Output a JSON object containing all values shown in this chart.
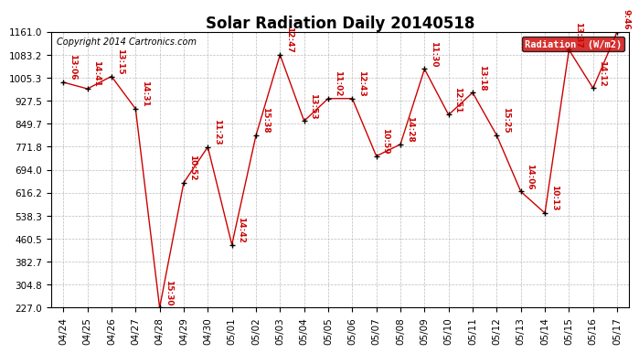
{
  "title": "Solar Radiation Daily 20140518",
  "copyright": "Copyright 2014 Cartronics.com",
  "legend_label": "Radiation  (W/m2)",
  "dates": [
    "04/24",
    "04/25",
    "04/26",
    "04/27",
    "04/28",
    "04/29",
    "04/30",
    "05/01",
    "05/02",
    "05/03",
    "05/04",
    "05/05",
    "05/06",
    "05/07",
    "05/08",
    "05/09",
    "05/10",
    "05/11",
    "05/12",
    "05/13",
    "05/14",
    "05/15",
    "05/16",
    "05/17"
  ],
  "values": [
    990,
    968,
    1010,
    900,
    227,
    650,
    771,
    440,
    810,
    1083,
    859,
    935,
    935,
    740,
    780,
    1035,
    880,
    955,
    810,
    620,
    547,
    1100,
    970,
    1161
  ],
  "labels": [
    "13:06",
    "14:41",
    "13:15",
    "14:31",
    "15:30",
    "10:52",
    "11:23",
    "14:42",
    "15:38",
    "12:47",
    "13:53",
    "11:02",
    "12:43",
    "10:59",
    "14:28",
    "11:30",
    "12:51",
    "13:18",
    "15:25",
    "14:06",
    "10:13",
    "13:37",
    "14:12",
    "9:46"
  ],
  "ylim": [
    227.0,
    1161.0
  ],
  "yticks": [
    227.0,
    304.8,
    382.7,
    460.5,
    538.3,
    616.2,
    694.0,
    771.8,
    849.7,
    927.5,
    1005.3,
    1083.2,
    1161.0
  ],
  "line_color": "#cc0000",
  "marker_color": "#000000",
  "label_color": "#cc0000",
  "legend_bg": "#cc0000",
  "legend_text_color": "#ffffff",
  "grid_color": "#bbbbbb",
  "bg_color": "#ffffff",
  "title_fontsize": 12,
  "label_fontsize": 6.5,
  "tick_fontsize": 7.5,
  "copyright_fontsize": 7
}
